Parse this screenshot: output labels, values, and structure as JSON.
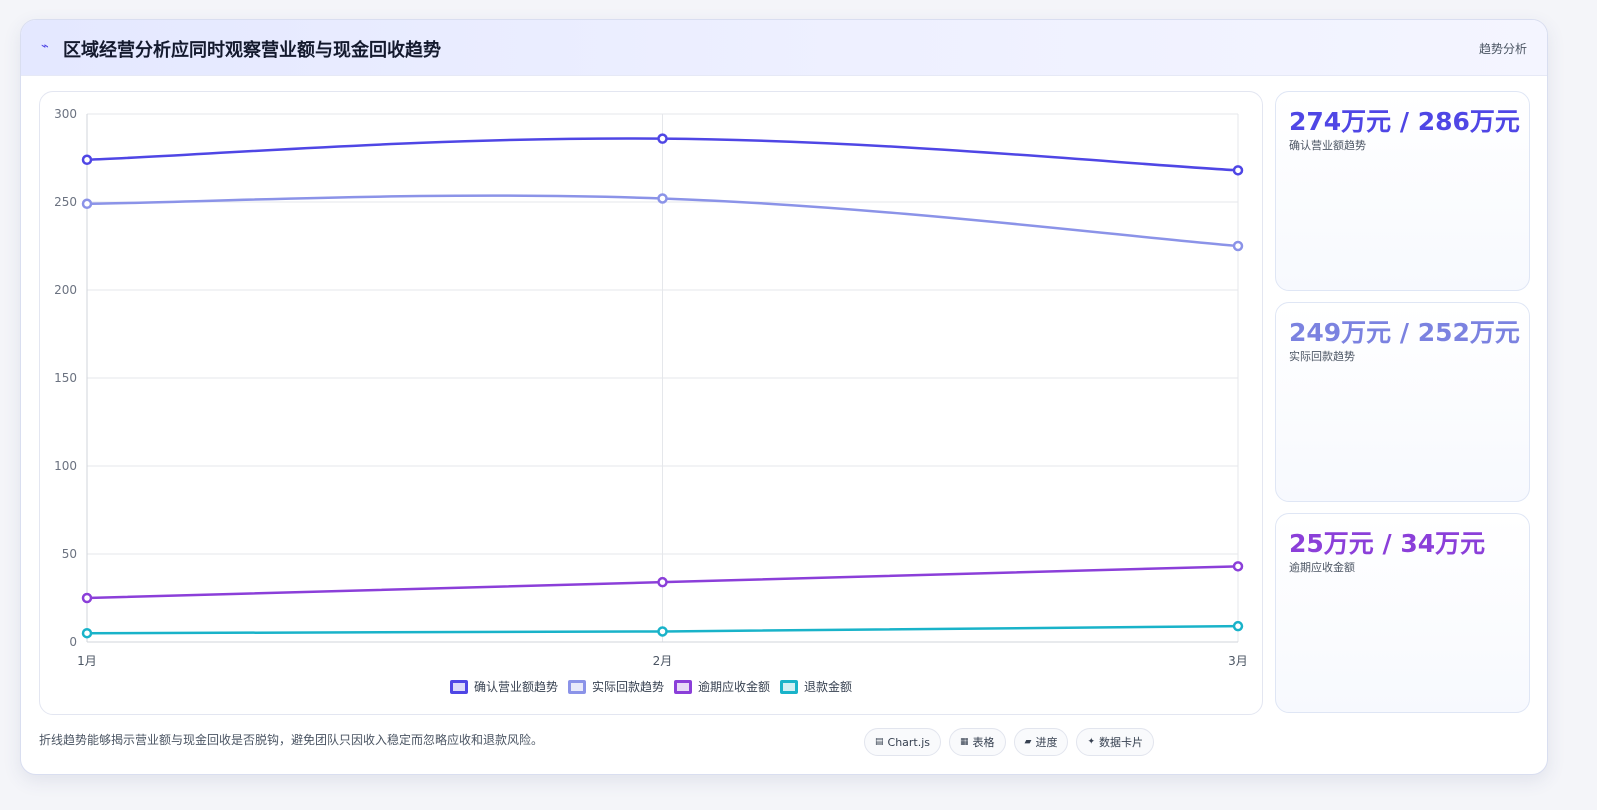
{
  "header": {
    "icon": "chart-trend-icon",
    "title": "区域经营分析应同时观察营业额与现金回收趋势",
    "tag": "趋势分析"
  },
  "chart_data": {
    "type": "line",
    "categories": [
      "1月",
      "2月",
      "3月"
    ],
    "ylim": [
      0,
      300
    ],
    "yticks": [
      0,
      50,
      100,
      150,
      200,
      250,
      300
    ],
    "grid": true,
    "legend_position": "bottom",
    "series": [
      {
        "name": "确认营业额趋势",
        "values": [
          274,
          286,
          268
        ],
        "color": "#4f46e5"
      },
      {
        "name": "实际回款趋势",
        "values": [
          249,
          252,
          225
        ],
        "color": "#8b93e8"
      },
      {
        "name": "逾期应收金额",
        "values": [
          25,
          34,
          43
        ],
        "color": "#8b3fd9"
      },
      {
        "name": "退款金额",
        "values": [
          5,
          6,
          9
        ],
        "color": "#19b3c9"
      }
    ]
  },
  "side_cards": [
    {
      "value": "274万元 / 286万元",
      "label": "确认营业额趋势",
      "color": "#4f46e5"
    },
    {
      "value": "249万元 / 252万元",
      "label": "实际回款趋势",
      "color": "#7b82e0"
    },
    {
      "value": "25万元 / 34万元",
      "label": "逾期应收金额",
      "color": "#8b3fd9"
    }
  ],
  "footer": {
    "note": "折线趋势能够揭示营业额与现金回收是否脱钩，避免团队只因收入稳定而忽略应收和退款风险。",
    "chips": [
      {
        "icon": "▤",
        "label": "Chart.js"
      },
      {
        "icon": "▦",
        "label": "表格"
      },
      {
        "icon": "▰",
        "label": "进度"
      },
      {
        "icon": "✦",
        "label": "数据卡片"
      }
    ]
  }
}
